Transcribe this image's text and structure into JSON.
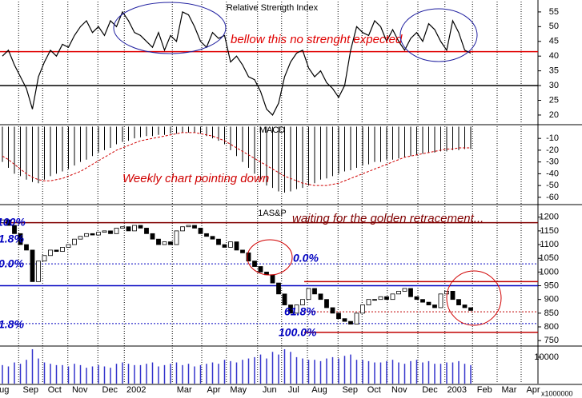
{
  "chart_data": [
    {
      "type": "line",
      "title": "Relative Strength Index",
      "ylim": [
        17,
        58.5
      ],
      "yticks": [
        20,
        25,
        30,
        35,
        40,
        45,
        50,
        55
      ],
      "levels": [
        {
          "value": 41.5,
          "color": "#e00000"
        },
        {
          "value": 30,
          "color": "#000000"
        }
      ],
      "annotations": [
        "bellow this no strenght expected"
      ],
      "series": [
        {
          "color": "#000000",
          "values": [
            40,
            42,
            37,
            33,
            29,
            22,
            33,
            38,
            42,
            40,
            44,
            43,
            47,
            50,
            52,
            48,
            50,
            47,
            52,
            50,
            55,
            52,
            48,
            47,
            45,
            43,
            48,
            42,
            47,
            45,
            55,
            54,
            50,
            45,
            43,
            48,
            46,
            47,
            38,
            40,
            37,
            33,
            32,
            28,
            22,
            20,
            24,
            33,
            38,
            41,
            42,
            36,
            33,
            35,
            31,
            29,
            26,
            30,
            42,
            50,
            48,
            47,
            52,
            50,
            45,
            49,
            45,
            42,
            46,
            48,
            45,
            51,
            49,
            45,
            42,
            52,
            48,
            42,
            41
          ]
        }
      ]
    },
    {
      "type": "macd",
      "title": "MACD",
      "ylim": [
        -65.5,
        0.3
      ],
      "yticks": [
        -10,
        -20,
        -30,
        -40,
        -50,
        -60
      ],
      "annotations": [
        "Weekly chart pointing down"
      ],
      "series": [
        {
          "color": "#000000",
          "values": [
            -30,
            -35,
            -40,
            -42,
            -45,
            -47,
            -48,
            -45,
            -42,
            -40,
            -38,
            -36,
            -33,
            -30,
            -28,
            -25,
            -22,
            -20,
            -18,
            -15,
            -13,
            -12,
            -10,
            -9,
            -8,
            -8,
            -7,
            -7,
            -6,
            -6,
            -5,
            -5,
            -5,
            -6,
            -8,
            -10,
            -12,
            -15,
            -20,
            -25,
            -30,
            -35,
            -40,
            -45,
            -50,
            -52,
            -55,
            -56,
            -55,
            -53,
            -52,
            -50,
            -48,
            -45,
            -44,
            -42,
            -40,
            -38,
            -37,
            -35,
            -33,
            -32,
            -30,
            -30,
            -28,
            -28,
            -27,
            -26,
            -25,
            -24,
            -23,
            -22,
            -22,
            -21,
            -21,
            -20,
            -20,
            -19,
            -19
          ]
        },
        {
          "color": "#d00000",
          "values": [
            -25,
            -28,
            -32,
            -36,
            -40,
            -43,
            -45,
            -46,
            -46,
            -45,
            -44,
            -42,
            -40,
            -38,
            -35,
            -32,
            -29,
            -26,
            -23,
            -20,
            -18,
            -16,
            -14,
            -12,
            -11,
            -10,
            -9,
            -8,
            -7,
            -6,
            -5,
            -5,
            -5,
            -6,
            -7,
            -8,
            -10,
            -12,
            -15,
            -18,
            -21,
            -24,
            -27,
            -30,
            -33,
            -36,
            -39,
            -42,
            -44,
            -46,
            -48,
            -49,
            -50,
            -50,
            -50,
            -49,
            -48,
            -46,
            -44,
            -42,
            -40,
            -38,
            -36,
            -34,
            -32,
            -30,
            -28,
            -26,
            -25,
            -24,
            -23,
            -22,
            -21,
            -20,
            -19,
            -19,
            -18,
            -18,
            -18
          ]
        }
      ]
    },
    {
      "type": "candlestick",
      "title": "1AS&P",
      "ylim": [
        733,
        1240
      ],
      "yticks": [
        1200,
        1150,
        1100,
        1050,
        1000,
        950,
        900,
        850,
        800,
        750
      ],
      "levels": [
        {
          "value": 1180,
          "color": "#800000"
        },
        {
          "value": 1030,
          "color": "#0000c0",
          "dashed": true
        },
        {
          "value": 950,
          "color": "#0000c0"
        },
        {
          "value": 812,
          "color": "#0000c0",
          "dashed": true
        },
        {
          "value": 965,
          "color": "#c00000"
        },
        {
          "value": 855,
          "color": "#c00000",
          "dashed": true
        },
        {
          "value": 780,
          "color": "#c00000"
        }
      ],
      "annotations": [
        "waiting for the golden retracement...",
        "0.0%",
        "61.8%",
        "100.0%",
        "100%",
        "1.8%",
        "0.0%",
        "1.8%"
      ],
      "open": [
        1180,
        1190,
        1170,
        1140,
        1100,
        1080,
        965,
        1040,
        1060,
        1080,
        1075,
        1090,
        1100,
        1120,
        1130,
        1140,
        1135,
        1145,
        1150,
        1140,
        1160,
        1165,
        1150,
        1170,
        1160,
        1140,
        1120,
        1100,
        1110,
        1100,
        1150,
        1165,
        1170,
        1160,
        1140,
        1130,
        1120,
        1100,
        1090,
        1110,
        1080,
        1070,
        1040,
        1020,
        1000,
        990,
        960,
        920,
        880,
        850,
        880,
        900,
        940,
        920,
        900,
        870,
        850,
        830,
        820,
        810,
        850,
        880,
        900,
        900,
        910,
        900,
        920,
        930,
        940,
        910,
        900,
        890,
        880,
        870,
        920,
        930,
        900,
        880,
        870
      ],
      "close": [
        1190,
        1170,
        1140,
        1100,
        1080,
        965,
        1040,
        1060,
        1080,
        1075,
        1090,
        1100,
        1120,
        1130,
        1140,
        1135,
        1145,
        1150,
        1140,
        1160,
        1165,
        1150,
        1170,
        1160,
        1140,
        1120,
        1100,
        1110,
        1100,
        1150,
        1165,
        1170,
        1160,
        1140,
        1130,
        1120,
        1100,
        1090,
        1110,
        1080,
        1070,
        1040,
        1020,
        1000,
        990,
        960,
        920,
        880,
        850,
        880,
        900,
        940,
        920,
        900,
        870,
        850,
        830,
        820,
        810,
        850,
        880,
        900,
        900,
        910,
        900,
        920,
        930,
        940,
        910,
        900,
        890,
        880,
        870,
        920,
        930,
        900,
        880,
        870,
        860
      ]
    },
    {
      "type": "bar",
      "color": "#3333cc",
      "ylim": [
        0,
        14500
      ],
      "yticks": [
        10000
      ],
      "unit_label": "x1000000",
      "values": [
        7000,
        6500,
        8000,
        7500,
        9000,
        13000,
        9500,
        8000,
        7500,
        7000,
        7000,
        6500,
        7500,
        7000,
        6000,
        6500,
        7000,
        6500,
        6000,
        7500,
        8000,
        7500,
        7000,
        7000,
        7500,
        8000,
        6500,
        7000,
        7500,
        8000,
        7000,
        7500,
        6500,
        7000,
        7500,
        8000,
        7500,
        9000,
        8500,
        8000,
        9000,
        9500,
        10000,
        11000,
        9500,
        12000,
        11000,
        13000,
        12000,
        10000,
        9500,
        9000,
        9000,
        8500,
        9500,
        10000,
        9500,
        10500,
        11000,
        9000,
        9000,
        8500,
        8000,
        8000,
        8500,
        9000,
        8000,
        7500,
        8500,
        9000,
        8000,
        8500,
        7500,
        7500,
        8000,
        8000,
        8500,
        7500,
        7000
      ],
      "xlim": [
        -0.4,
        89.2
      ],
      "xticks": [
        {
          "value": 0.3,
          "label": "ug"
        },
        {
          "value": 4.7,
          "label": "Sep"
        },
        {
          "value": 8.7,
          "label": "Oct"
        },
        {
          "value": 12.9,
          "label": "Nov"
        },
        {
          "value": 17.9,
          "label": "Dec"
        },
        {
          "value": 22.3,
          "label": "2002"
        },
        {
          "value": 30.3,
          "label": "Mar"
        },
        {
          "value": 35.2,
          "label": "Apr"
        },
        {
          "value": 39.3,
          "label": "May"
        },
        {
          "value": 44.5,
          "label": "Jun"
        },
        {
          "value": 48.5,
          "label": "Jul"
        },
        {
          "value": 52.8,
          "label": "Aug"
        },
        {
          "value": 57.9,
          "label": "Sep"
        },
        {
          "value": 61.9,
          "label": "Oct"
        },
        {
          "value": 66.1,
          "label": "Nov"
        },
        {
          "value": 71.2,
          "label": "Dec"
        },
        {
          "value": 75.7,
          "label": "2003"
        },
        {
          "value": 80.3,
          "label": "Feb"
        },
        {
          "value": 84.4,
          "label": "Mar"
        },
        {
          "value": 88.4,
          "label": "Apr"
        }
      ]
    }
  ]
}
